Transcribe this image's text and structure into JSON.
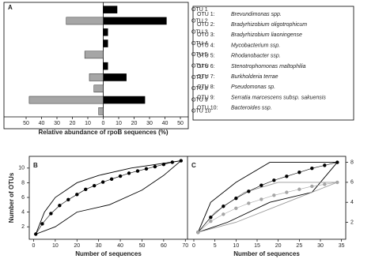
{
  "chart_data": [
    {
      "type": "bar",
      "orientation": "horizontal",
      "label": "A",
      "xlabel": "Relative abundance of rpoB sequences (%)",
      "categories": [
        "OTU 1",
        "OTU 2",
        "OTU 3",
        "OTU 4",
        "OTU 5",
        "OTU 6",
        "OTU 7",
        "OTU 8",
        "OTU 9",
        "OTU 10"
      ],
      "series": [
        {
          "color": "#000000",
          "values": [
            9,
            41,
            3,
            3,
            0,
            3,
            15,
            0,
            27,
            0
          ]
        },
        {
          "color": "#a6a6a6",
          "values": [
            0,
            -24,
            0,
            0,
            -12,
            0,
            -9,
            -6,
            -48,
            -3
          ]
        }
      ],
      "xlim": [
        -50,
        50
      ],
      "xticks": [
        {
          "value": -50,
          "label": "50"
        },
        {
          "value": -40,
          "label": "40"
        },
        {
          "value": -30,
          "label": "30"
        },
        {
          "value": -20,
          "label": "20"
        },
        {
          "value": -10,
          "label": "10"
        },
        0,
        10,
        20,
        30,
        40,
        50
      ],
      "legend_entries": [
        {
          "label": "OTU 1:",
          "name": "Brevundimonas spp."
        },
        {
          "label": "OTU 2:",
          "name": "Bradyrhizobium oligotrophicum"
        },
        {
          "label": "OTU 3:",
          "name": "Bradyrhizobium liaoningense"
        },
        {
          "label": "OTU 4:",
          "name": "Mycobacterium  ssp."
        },
        {
          "label": "OTU 5:",
          "name": "Rhodanobacter ssp."
        },
        {
          "label": "OTU 6:",
          "name": "Stenotrophomonas maltophilia"
        },
        {
          "label": "OTU 7:",
          "name": "Burkholderia terrae"
        },
        {
          "label": "OTU 8:",
          "name": "Pseudomonas sp."
        },
        {
          "label": "OTU 9:",
          "name": "Serratia marcescens subsp. sakuensis"
        },
        {
          "label": "OTU 10:",
          "name": "Bacteroides ssp."
        }
      ]
    },
    {
      "type": "line",
      "label": "B",
      "xlabel": "Number of sequences",
      "ylabel": "Number of OTUs",
      "y_axis_side": "left",
      "xlim": [
        -2,
        71
      ],
      "ylim": [
        0.3,
        11.6
      ],
      "xticks": [
        0,
        10,
        20,
        30,
        40,
        50,
        60,
        70
      ],
      "yticks": [
        2,
        4,
        6,
        8,
        10
      ],
      "series": [
        {
          "color": "#000000",
          "marker": true,
          "x": [
            1,
            4,
            8,
            12,
            16,
            20,
            24,
            28,
            32,
            36,
            40,
            44,
            48,
            52,
            56,
            60,
            64,
            68
          ],
          "values": [
            1,
            2.4,
            3.8,
            4.9,
            5.7,
            6.4,
            7.1,
            7.6,
            8.1,
            8.5,
            8.9,
            9.3,
            9.6,
            9.9,
            10.2,
            10.5,
            10.8,
            11
          ]
        },
        {
          "color": "#000000",
          "marker": false,
          "x": [
            1,
            5,
            10,
            20,
            30,
            45,
            68
          ],
          "values": [
            1,
            4,
            6,
            8,
            9,
            10,
            11
          ]
        },
        {
          "color": "#000000",
          "marker": false,
          "x": [
            1,
            10,
            20,
            35,
            50,
            60,
            68
          ],
          "values": [
            1,
            2,
            4,
            5,
            7,
            9,
            11
          ]
        }
      ]
    },
    {
      "type": "line",
      "label": "C",
      "xlabel": "Number of sequences",
      "y_axis_side": "right",
      "xlim": [
        -1.5,
        36
      ],
      "ylim": [
        0.3,
        8.6
      ],
      "xticks": [
        0,
        5,
        10,
        15,
        20,
        25,
        30,
        35
      ],
      "yticks": [
        2,
        4,
        6,
        8
      ],
      "series": [
        {
          "color": "#000000",
          "marker": false,
          "x": [
            1,
            4,
            10,
            18,
            34
          ],
          "values": [
            1,
            4,
            6,
            8,
            8
          ]
        },
        {
          "color": "#000000",
          "marker": false,
          "x": [
            1,
            8,
            18,
            28,
            34
          ],
          "values": [
            1,
            2,
            4,
            5,
            8
          ]
        },
        {
          "color": "#999999",
          "marker": false,
          "x": [
            1,
            5,
            12,
            20,
            34
          ],
          "values": [
            1,
            3,
            5,
            6,
            6
          ]
        },
        {
          "color": "#999999",
          "marker": false,
          "x": [
            1,
            10,
            22,
            34
          ],
          "values": [
            1,
            2,
            4,
            6
          ]
        },
        {
          "color": "#000000",
          "marker": true,
          "x": [
            1,
            4,
            7,
            10,
            13,
            16,
            19,
            22,
            25,
            28,
            31,
            34
          ],
          "values": [
            1,
            2.5,
            3.6,
            4.4,
            5.1,
            5.7,
            6.2,
            6.6,
            7.0,
            7.4,
            7.7,
            8
          ]
        },
        {
          "color": "#a6a6a6",
          "marker": true,
          "x": [
            1,
            4,
            7,
            10,
            13,
            16,
            19,
            22,
            25,
            28,
            31,
            34
          ],
          "values": [
            1,
            2.1,
            2.8,
            3.4,
            3.9,
            4.3,
            4.7,
            5.0,
            5.3,
            5.6,
            5.8,
            6
          ]
        }
      ]
    }
  ]
}
